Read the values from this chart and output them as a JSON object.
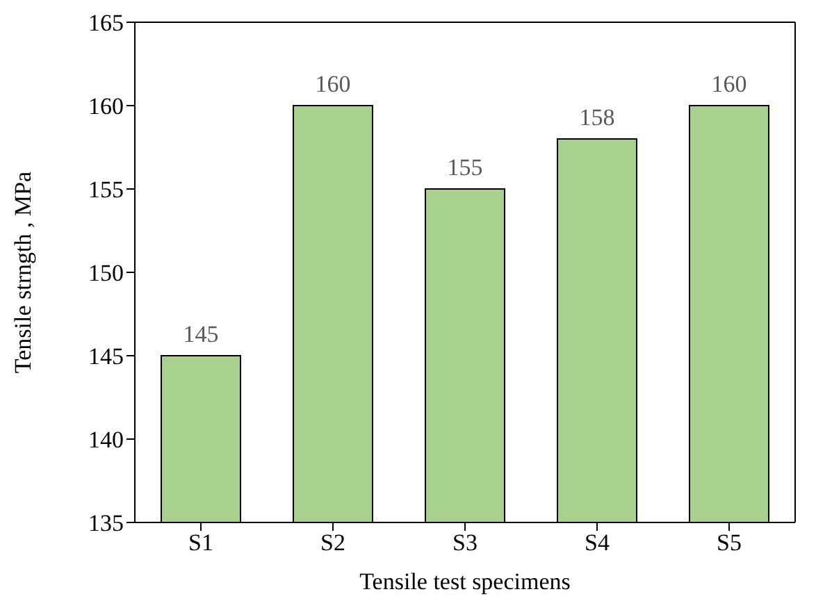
{
  "chart_data": {
    "type": "bar",
    "xlabel": "Tensile test specimens",
    "ylabel": "Tensile strngth , MPa",
    "categories": [
      "S1",
      "S2",
      "S3",
      "S4",
      "S5"
    ],
    "values": [
      145,
      160,
      155,
      158,
      160
    ],
    "color": "#a9d18e",
    "ylim": [
      135,
      165
    ],
    "yticks": [
      135,
      140,
      145,
      150,
      155,
      160,
      165
    ],
    "data_labels": true,
    "grid": false,
    "legend": false
  }
}
